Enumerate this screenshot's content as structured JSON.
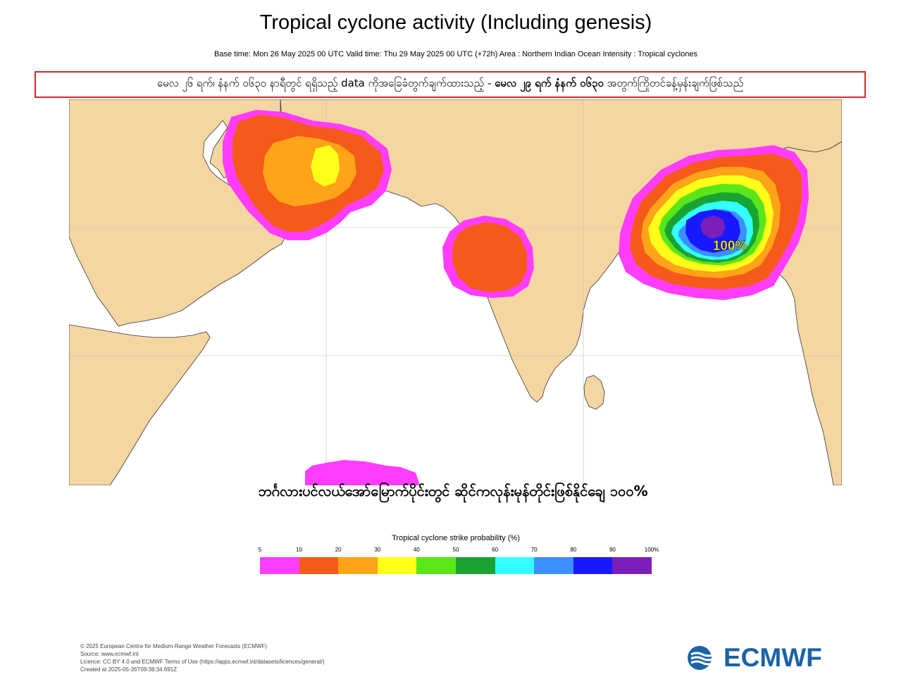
{
  "header": {
    "title": "Tropical cyclone activity (Including genesis)",
    "subtitle": "Base time: Mon 26 May 2025 00 UTC Valid time: Thu 29 May 2025 00 UTC (+72h) Area : Northern Indian Ocean Intensity : Tropical cyclones"
  },
  "notice": {
    "part1": "မေလ ၂၆ ရက်၊ နံနက် ၀၆၃၀ နာရီတွင် ရရှိသည့် data ကိုအခြေခံတွက်ချက်ထားသည့် -",
    "part2": "မေလ ၂၉ ရက် နံနက် ၀၆၃၀",
    "part3": "အတွက်ကြိုတင်ခန့်မှန်းချက်ဖြစ်သည်"
  },
  "map": {
    "max_label": "100%",
    "caption": "ဘင်္ဂလားပင်လယ်အော်မြောက်ပိုင်းတွင် ဆိုင်ကလုန်းမုန်တိုင်းဖြစ်နိုင်ချေ ၁၀၀%",
    "land_color": "#f5d6a3",
    "ocean_color": "#ffffff",
    "systems": [
      {
        "region": "Arabian Sea north / Gulf of Oman",
        "max_probability_pct": 30
      },
      {
        "region": "Eastern Arabian Sea",
        "max_probability_pct": 20
      },
      {
        "region": "North Bay of Bengal",
        "max_probability_pct": 100
      },
      {
        "region": "Southern Indian Ocean edge",
        "max_probability_pct": 10
      }
    ]
  },
  "legend": {
    "title": "Tropical cyclone strike probability (%)",
    "ticks": [
      "5",
      "10",
      "20",
      "30",
      "40",
      "50",
      "60",
      "70",
      "80",
      "90",
      "100%"
    ],
    "colors": [
      "#ff3dff",
      "#f55a1a",
      "#ffa319",
      "#ffff19",
      "#5ae619",
      "#19a333",
      "#33ffff",
      "#3d8fff",
      "#1919ff",
      "#7a1fb8"
    ]
  },
  "footer": {
    "lines": [
      "© 2025 European Centre for Medium-Range Weather Forecasts (ECMWF)",
      "Source: www.ecmwf.int",
      "Licence: CC BY 4.0 and ECMWF Terms of Use (https://apps.ecmwf.int/datasets/licences/general/)",
      "Created at 2025-05-26T09:38:34.691Z"
    ],
    "logo_text": "ECMWF",
    "logo_color": "#1a63a8"
  }
}
